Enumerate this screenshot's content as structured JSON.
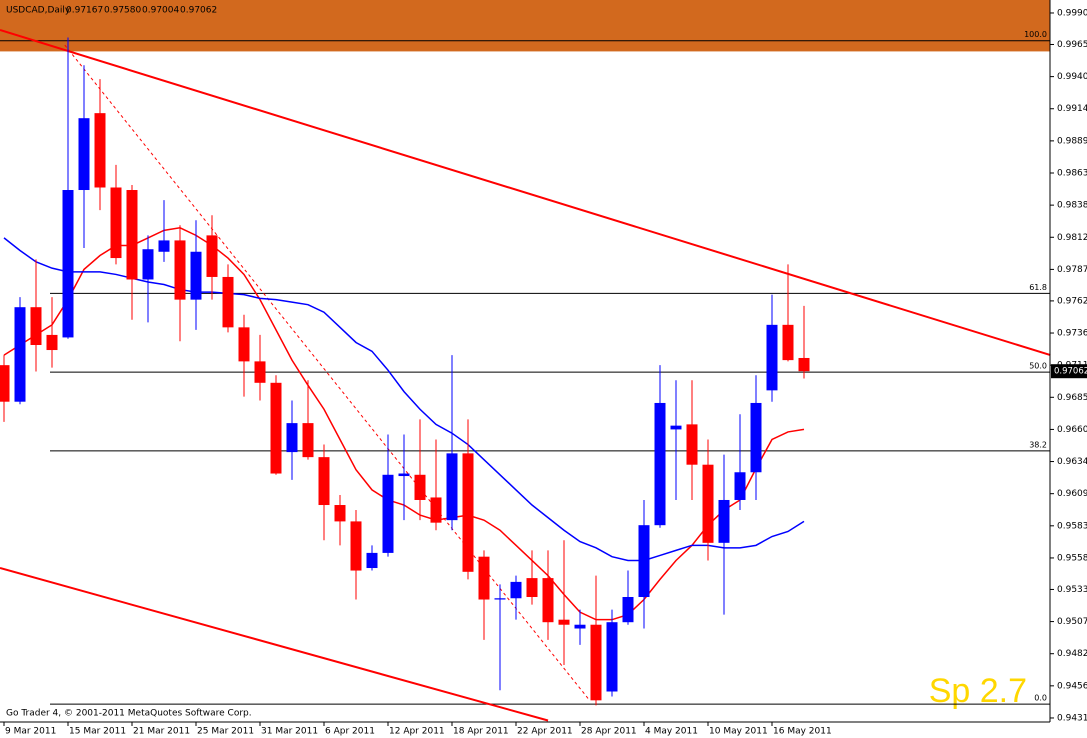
{
  "chart_data": {
    "type": "candlestick",
    "title": "USDCAD,Daily",
    "header_labels": [
      "0.97167",
      "0.97580",
      "0.97004",
      "0.97062"
    ],
    "footer": "Go Trader 4, © 2001-2011 MetaQuotes Software Corp.",
    "watermark": "Sp 2.7",
    "categories": [
      "9 Mar 2011",
      null,
      null,
      null,
      "15 Mar 2011",
      null,
      null,
      null,
      "21 Mar 2011",
      null,
      null,
      null,
      "25 Mar 2011",
      null,
      null,
      null,
      "31 Mar 2011",
      null,
      null,
      null,
      "6 Apr 2011",
      null,
      null,
      null,
      "12 Apr 2011",
      null,
      null,
      null,
      "18 Apr 2011",
      null,
      null,
      null,
      "22 Apr 2011",
      null,
      null,
      null,
      "28 Apr 2011",
      null,
      null,
      null,
      "4 May 2011",
      null,
      null,
      null,
      "10 May 2011",
      null,
      null,
      null,
      "16 May 2011",
      null,
      null
    ],
    "open": [
      0.9711,
      0.9682,
      0.9757,
      0.9735,
      0.9733,
      0.985,
      0.9911,
      0.9852,
      0.985,
      0.9779,
      0.9801,
      0.981,
      0.9763,
      0.9814,
      0.9781,
      0.9741,
      0.9714,
      0.9697,
      0.9642,
      0.9665,
      0.9638,
      0.96,
      0.9587,
      0.955,
      0.9562,
      0.9623,
      0.9624,
      0.9606,
      0.9588,
      0.9641,
      0.9559,
      0.9525,
      0.9526,
      0.9542,
      0.9542,
      0.9509,
      0.9502,
      0.9505,
      0.9452,
      0.9507,
      0.9527,
      0.9584,
      0.966,
      0.9664,
      0.9632,
      0.957,
      0.9604,
      0.9626,
      0.9691,
      0.9743,
      0.97167
    ],
    "high": [
      0.9719,
      0.9765,
      0.9795,
      0.9765,
      0.9971,
      0.9949,
      0.9938,
      0.987,
      0.9854,
      0.9814,
      0.9842,
      0.9822,
      0.9826,
      0.983,
      0.9791,
      0.9751,
      0.9735,
      0.9703,
      0.9683,
      0.9699,
      0.9648,
      0.9608,
      0.9596,
      0.9568,
      0.9656,
      0.9656,
      0.9668,
      0.9652,
      0.9719,
      0.9668,
      0.9564,
      0.9537,
      0.9544,
      0.9564,
      0.9564,
      0.9572,
      0.9517,
      0.9544,
      0.9517,
      0.9548,
      0.9604,
      0.9711,
      0.9699,
      0.9699,
      0.9652,
      0.964,
      0.9672,
      0.9703,
      0.9767,
      0.9791,
      0.9758
    ],
    "low": [
      0.9666,
      0.968,
      0.9706,
      0.9709,
      0.9732,
      0.9804,
      0.9834,
      0.9791,
      0.9747,
      0.9745,
      0.9793,
      0.973,
      0.9739,
      0.9763,
      0.9737,
      0.9686,
      0.9683,
      0.9624,
      0.962,
      0.9636,
      0.9572,
      0.9568,
      0.9525,
      0.9548,
      0.9559,
      0.9588,
      0.9588,
      0.958,
      0.958,
      0.9541,
      0.9493,
      0.9453,
      0.9509,
      0.9521,
      0.9493,
      0.9473,
      0.9489,
      0.9441,
      0.9448,
      0.9505,
      0.9502,
      0.9582,
      0.9604,
      0.9604,
      0.9556,
      0.9513,
      0.9596,
      0.9604,
      0.9682,
      0.9714,
      0.97004
    ],
    "close": [
      0.9682,
      0.9757,
      0.9727,
      0.9723,
      0.985,
      0.9907,
      0.9852,
      0.9796,
      0.9779,
      0.9803,
      0.981,
      0.9763,
      0.9801,
      0.9781,
      0.9741,
      0.9714,
      0.9697,
      0.9625,
      0.9665,
      0.9638,
      0.96,
      0.9587,
      0.9548,
      0.9562,
      0.9624,
      0.9625,
      0.9604,
      0.9586,
      0.9641,
      0.9547,
      0.9525,
      0.9526,
      0.9539,
      0.9527,
      0.9507,
      0.9505,
      0.9505,
      0.9445,
      0.9507,
      0.9527,
      0.9584,
      0.9681,
      0.9663,
      0.9632,
      0.957,
      0.9604,
      0.9626,
      0.9681,
      0.9743,
      0.9715,
      0.97062
    ],
    "up_color": "#0000ff",
    "down_color": "#ff0000",
    "lines": [
      {
        "color": "#ff0000",
        "values": [
          0.9719,
          0.9727,
          0.9735,
          0.9743,
          0.9763,
          0.9787,
          0.9798,
          0.9806,
          0.9806,
          0.9812,
          0.9818,
          0.982,
          0.9814,
          0.9806,
          0.9796,
          0.9783,
          0.9763,
          0.9739,
          0.9715,
          0.9695,
          0.9676,
          0.9652,
          0.9628,
          0.9612,
          0.9604,
          0.96,
          0.9592,
          0.9588,
          0.959,
          0.9592,
          0.9588,
          0.958,
          0.9568,
          0.9556,
          0.9544,
          0.9529,
          0.9515,
          0.9509,
          0.9509,
          0.9513,
          0.9525,
          0.9541,
          0.9556,
          0.9568,
          0.9584,
          0.9596,
          0.9604,
          0.9629,
          0.9652,
          0.9658,
          0.966
        ]
      },
      {
        "color": "#0000ff",
        "values": [
          0.9812,
          0.9802,
          0.9793,
          0.9788,
          0.9785,
          0.9785,
          0.9785,
          0.9783,
          0.978,
          0.9777,
          0.9775,
          0.9771,
          0.9769,
          0.9769,
          0.9768,
          0.9767,
          0.9764,
          0.9763,
          0.9761,
          0.9759,
          0.9753,
          0.9741,
          0.9729,
          0.9722,
          0.9707,
          0.969,
          0.9676,
          0.9664,
          0.9657,
          0.9648,
          0.9636,
          0.9624,
          0.9612,
          0.96,
          0.959,
          0.958,
          0.9571,
          0.9566,
          0.9559,
          0.9556,
          0.9556,
          0.956,
          0.9564,
          0.9568,
          0.9568,
          0.9566,
          0.9566,
          0.9568,
          0.9575,
          0.9579,
          0.9587
        ]
      }
    ],
    "zone": {
      "from": 0.996,
      "to": 1.0001,
      "color": "#d2691e"
    },
    "fib_levels": [
      {
        "price": 0.99685,
        "label": "100.0"
      },
      {
        "price": 0.9768,
        "label": "61.8"
      },
      {
        "price": 0.97055,
        "label": "50.0"
      },
      {
        "price": 0.9643,
        "label": "38.2"
      },
      {
        "price": 0.9442,
        "label": "0.0"
      }
    ],
    "trendlines": [
      {
        "color": "#ff0000",
        "dashed": false,
        "x": [
          -0.25,
          65.4
        ],
        "y": [
          0.9977,
          0.9719
        ]
      },
      {
        "color": "#ff0000",
        "dashed": false,
        "x": [
          -0.25,
          34
        ],
        "y": [
          0.955,
          0.9429
        ]
      },
      {
        "color": "#ff0000",
        "dashed": true,
        "x": [
          3.8,
          36.6
        ],
        "y": [
          0.9965,
          0.9445
        ]
      }
    ],
    "ylim": [
      0.94278,
      1.00008
    ],
    "yticks": [
      0.99905,
      0.99655,
      {
        "value": 0.994,
        "label": "0.99400"
      },
      0.99145,
      {
        "value": 0.9889,
        "label": "0.98890"
      },
      0.98635,
      {
        "value": 0.9838,
        "label": "0.98380"
      },
      0.98125,
      {
        "value": 0.9787,
        "label": "0.97870"
      },
      {
        "value": 0.9762,
        "label": "0.97620"
      },
      0.97365,
      {
        "value": 0.9711,
        "label": "0.97110"
      },
      0.96855,
      {
        "value": 0.966,
        "label": "0.96600"
      },
      0.96345,
      {
        "value": 0.9609,
        "label": "0.96090"
      },
      0.95835,
      {
        "value": 0.9558,
        "label": "0.95580"
      },
      {
        "value": 0.9533,
        "label": "0.95330"
      },
      0.95075,
      {
        "value": 0.9482,
        "label": "0.94820"
      },
      0.94565,
      {
        "value": 0.9431,
        "label": "0.94310"
      }
    ]
  }
}
